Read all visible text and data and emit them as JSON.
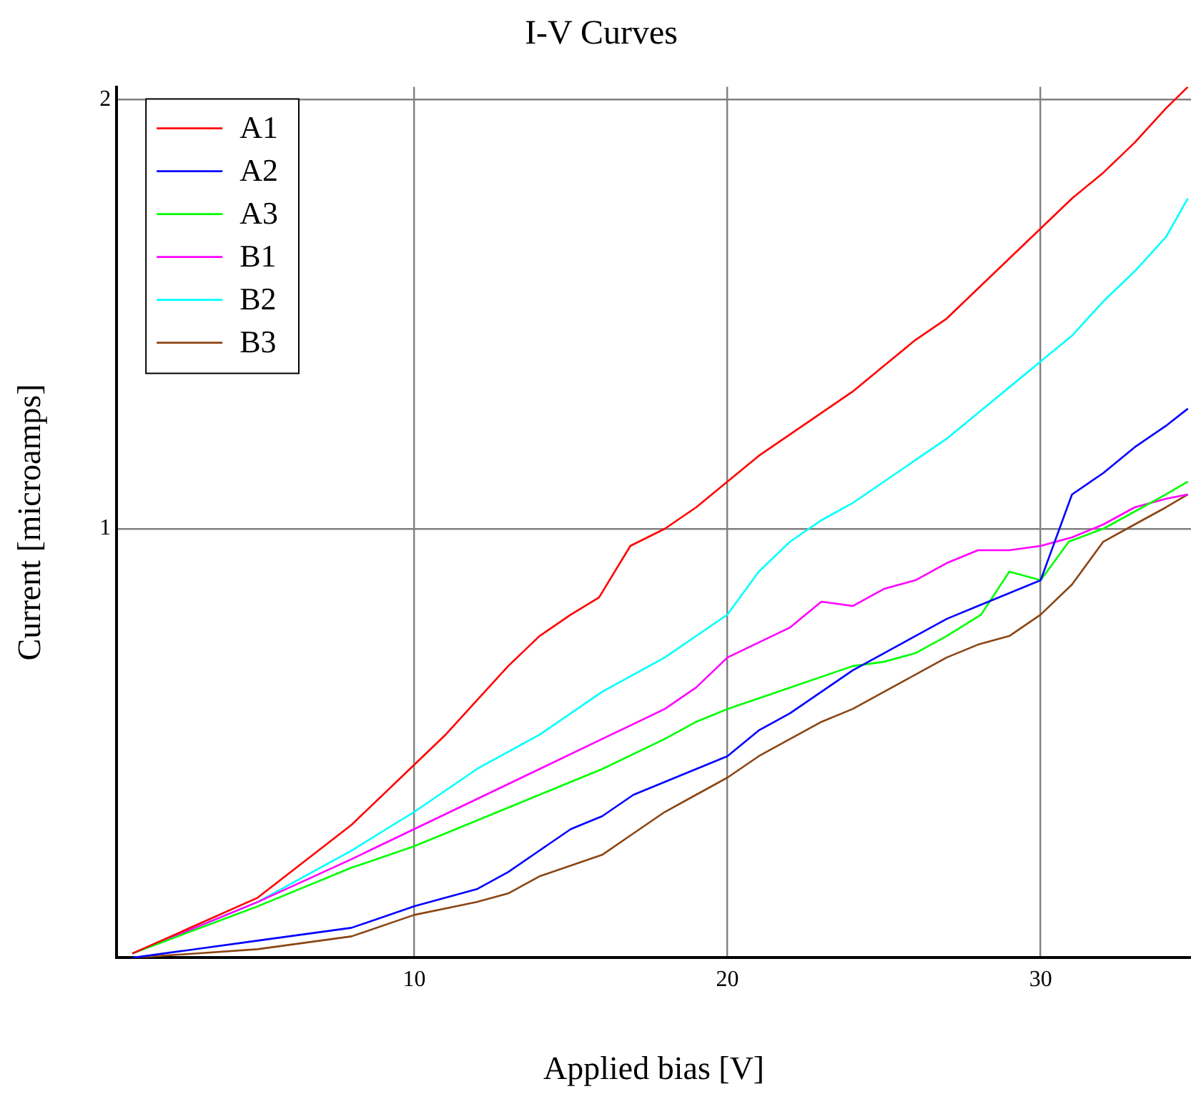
{
  "chart_data": {
    "type": "line",
    "title": "I-V Curves",
    "xlabel": "Applied bias [V]",
    "ylabel": "Current [microamps]",
    "xlim": [
      0.5,
      34.8
    ],
    "ylim": [
      0,
      2.03
    ],
    "xticks": [
      10,
      20,
      30
    ],
    "yticks": [
      1,
      2
    ],
    "grid": true,
    "legend": "top left",
    "marker": "none",
    "line_style": "solid",
    "series": [
      {
        "name": "A1",
        "color": "#ff0000",
        "x": [
          1,
          5,
          8,
          10,
          11,
          12,
          13,
          14,
          15,
          15.9,
          16.9,
          18,
          19,
          20,
          21,
          22,
          23,
          24,
          25,
          26,
          27,
          28,
          29,
          30,
          31,
          32,
          33,
          34,
          34.7
        ],
        "values": [
          0.01,
          0.14,
          0.31,
          0.45,
          0.52,
          0.6,
          0.68,
          0.75,
          0.8,
          0.84,
          0.96,
          1.0,
          1.05,
          1.11,
          1.17,
          1.22,
          1.27,
          1.32,
          1.38,
          1.44,
          1.49,
          1.56,
          1.63,
          1.7,
          1.77,
          1.83,
          1.9,
          1.98,
          2.03
        ]
      },
      {
        "name": "A2",
        "color": "#0000ff",
        "x": [
          1,
          5,
          8,
          10,
          12,
          13,
          14,
          15,
          16,
          17,
          18,
          19,
          20,
          21,
          22,
          23,
          24,
          25,
          26,
          27,
          28,
          29,
          30,
          31,
          32,
          33,
          34,
          34.7
        ],
        "values": [
          0,
          0.04,
          0.07,
          0.12,
          0.16,
          0.2,
          0.25,
          0.3,
          0.33,
          0.38,
          0.41,
          0.44,
          0.47,
          0.53,
          0.57,
          0.62,
          0.67,
          0.71,
          0.75,
          0.79,
          0.82,
          0.85,
          0.88,
          1.08,
          1.13,
          1.19,
          1.24,
          1.28
        ]
      },
      {
        "name": "A3",
        "color": "#00ff00",
        "x": [
          1,
          5,
          8,
          10,
          12,
          14,
          16,
          18,
          19,
          20,
          22,
          24,
          25,
          26,
          27,
          28.1,
          29,
          30,
          30.9,
          32,
          33,
          34,
          34.7
        ],
        "values": [
          0.01,
          0.12,
          0.21,
          0.26,
          0.32,
          0.38,
          0.44,
          0.51,
          0.55,
          0.58,
          0.63,
          0.68,
          0.69,
          0.71,
          0.75,
          0.8,
          0.9,
          0.88,
          0.97,
          1.0,
          1.04,
          1.08,
          1.11
        ]
      },
      {
        "name": "B1",
        "color": "#ff00ff",
        "x": [
          1,
          5,
          8,
          10,
          12,
          14,
          16,
          18,
          19,
          20,
          22,
          23,
          24,
          25,
          26,
          27,
          28,
          29,
          30,
          31,
          32,
          33,
          34,
          34.7
        ],
        "values": [
          0.01,
          0.13,
          0.23,
          0.3,
          0.37,
          0.44,
          0.51,
          0.58,
          0.63,
          0.7,
          0.77,
          0.83,
          0.82,
          0.86,
          0.88,
          0.92,
          0.95,
          0.95,
          0.96,
          0.98,
          1.01,
          1.05,
          1.07,
          1.08
        ]
      },
      {
        "name": "B2",
        "color": "#00ffff",
        "x": [
          1,
          5,
          8,
          10,
          12,
          14,
          16,
          18,
          20,
          21,
          22,
          23,
          24,
          25,
          26,
          27,
          28,
          29,
          30,
          31,
          32,
          33,
          34,
          34.7
        ],
        "values": [
          0.01,
          0.13,
          0.25,
          0.34,
          0.44,
          0.52,
          0.62,
          0.7,
          0.8,
          0.9,
          0.97,
          1.02,
          1.06,
          1.11,
          1.16,
          1.21,
          1.27,
          1.33,
          1.39,
          1.45,
          1.53,
          1.6,
          1.68,
          1.77
        ]
      },
      {
        "name": "B3",
        "color": "#8b4513",
        "x": [
          1,
          5,
          8,
          10,
          12,
          13,
          14,
          16,
          17,
          18,
          19,
          20,
          21,
          22,
          23,
          24,
          25,
          26,
          27,
          28,
          29,
          30,
          31,
          32,
          33,
          34,
          34.7
        ],
        "values": [
          0,
          0.02,
          0.05,
          0.1,
          0.13,
          0.15,
          0.19,
          0.24,
          0.29,
          0.34,
          0.38,
          0.42,
          0.47,
          0.51,
          0.55,
          0.58,
          0.62,
          0.66,
          0.7,
          0.73,
          0.75,
          0.8,
          0.87,
          0.97,
          1.01,
          1.05,
          1.08
        ]
      }
    ]
  }
}
